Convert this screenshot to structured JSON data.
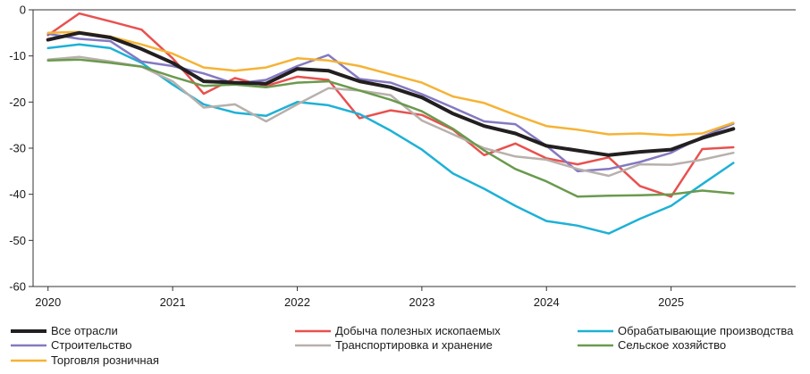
{
  "chart_data": {
    "type": "line",
    "title": "",
    "xlabel": "",
    "ylabel": "",
    "ylim": [
      -60,
      0
    ],
    "yticks": [
      0,
      -10,
      -20,
      -30,
      -40,
      -50,
      -60
    ],
    "x_tick_labels": [
      "2020",
      "2021",
      "2022",
      "2023",
      "2024",
      "2025"
    ],
    "x_tick_values": [
      2020,
      2021,
      2022,
      2023,
      2024,
      2025
    ],
    "xlim": [
      2019.88,
      2026.0
    ],
    "grid": false,
    "legend_position": "bottom",
    "x": [
      2020.0,
      2020.25,
      2020.5,
      2020.75,
      2021.0,
      2021.25,
      2021.5,
      2021.75,
      2022.0,
      2022.25,
      2022.5,
      2022.75,
      2023.0,
      2023.25,
      2023.5,
      2023.75,
      2024.0,
      2024.25,
      2024.5,
      2024.75,
      2025.0,
      2025.25,
      2025.5
    ],
    "series": [
      {
        "name": "Все отрасли",
        "color": "#231f20",
        "width": 4,
        "values": [
          -6.5,
          -5,
          -6,
          -8.5,
          -11.5,
          -15.5,
          -15.8,
          -16,
          -12.8,
          -13.2,
          -15.5,
          -16.8,
          -19,
          -22.5,
          -25.2,
          -26.8,
          -29.5,
          -30.5,
          -31.5,
          -30.8,
          -30.3,
          -27.8,
          -25.8
        ]
      },
      {
        "name": "Добыча полезных ископаемых",
        "color": "#e8514f",
        "width": 2.5,
        "values": [
          -5.5,
          -0.8,
          -2.5,
          -4.3,
          -10.5,
          -18.2,
          -14.8,
          -16.5,
          -14.5,
          -15.2,
          -23.5,
          -21.8,
          -22.8,
          -26,
          -31.5,
          -29,
          -32.2,
          -33.5,
          -32,
          -38.2,
          -40.5,
          -30.2,
          -29.8
        ]
      },
      {
        "name": "Обрабатывающие производства",
        "color": "#1eb1d6",
        "width": 2.5,
        "values": [
          -8.3,
          -7.5,
          -8.3,
          -11.5,
          -16.2,
          -20.5,
          -22.3,
          -23,
          -20,
          -20.7,
          -22.6,
          -26.2,
          -30.3,
          -35.5,
          -38.8,
          -42.5,
          -45.8,
          -46.8,
          -48.5,
          -45.3,
          -42.5,
          -37.8,
          -33.2
        ]
      },
      {
        "name": "Строительство",
        "color": "#8479c1",
        "width": 2.5,
        "values": [
          -5.2,
          -6.3,
          -6.8,
          -11.2,
          -12.2,
          -13.8,
          -16,
          -15.2,
          -12.2,
          -9.8,
          -15,
          -15.8,
          -18.3,
          -21.2,
          -24.2,
          -24.8,
          -29.5,
          -35,
          -34.5,
          -33,
          -31,
          -27.5,
          -24.7
        ]
      },
      {
        "name": "Транспортировка и хранение",
        "color": "#b8b0ab",
        "width": 2.5,
        "values": [
          -10.8,
          -10.2,
          -11.2,
          -12.3,
          -15.5,
          -21.2,
          -20.5,
          -24.2,
          -20.5,
          -17,
          -17.5,
          -18.5,
          -24,
          -27,
          -30,
          -31.8,
          -32.5,
          -34.5,
          -36,
          -33.5,
          -33.6,
          -32.5,
          -31
        ]
      },
      {
        "name": "Сельское хозяйство",
        "color": "#6a9a4e",
        "width": 2.5,
        "values": [
          -11,
          -10.8,
          -11.5,
          -12.3,
          -14.5,
          -16.5,
          -16.2,
          -16.8,
          -15.8,
          -15.5,
          -17.5,
          -19.5,
          -22,
          -25.8,
          -30.5,
          -34.5,
          -37.2,
          -40.5,
          -40.3,
          -40.2,
          -40,
          -39.2,
          -39.8
        ]
      },
      {
        "name": "Торговля розничная",
        "color": "#f5b335",
        "width": 2.5,
        "values": [
          -5,
          -4.8,
          -5.8,
          -7.5,
          -9.5,
          -12.5,
          -13.2,
          -12.5,
          -10.5,
          -11,
          -12.2,
          -14,
          -15.8,
          -18.8,
          -20.2,
          -22.8,
          -25.2,
          -26,
          -27,
          -26.8,
          -27.2,
          -26.8,
          -24.5
        ]
      }
    ]
  }
}
